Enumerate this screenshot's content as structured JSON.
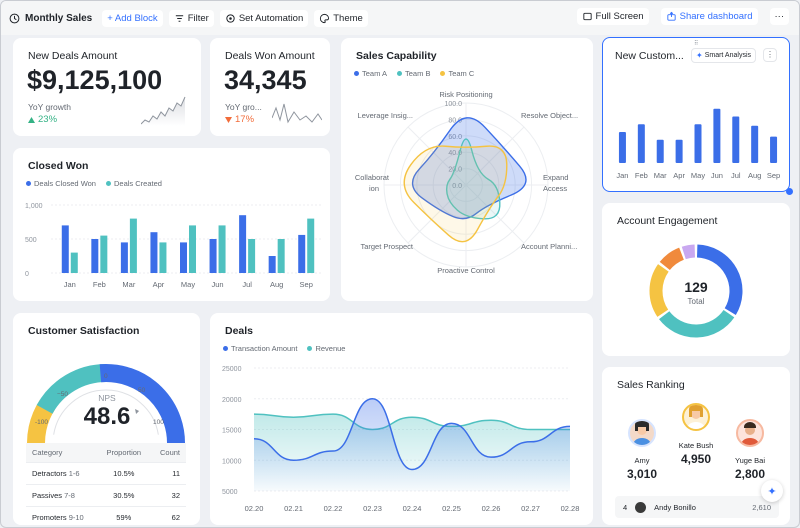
{
  "toolbar": {
    "title": "Monthly Sales",
    "add_block": "+ Add Block",
    "filter": "Filter",
    "set_automation": "Set Automation",
    "theme": "Theme",
    "full_screen": "Full Screen",
    "share_dashboard": "Share dashboard",
    "more": "···"
  },
  "new_deals": {
    "title": "New Deals Amount",
    "value": "$9,125,100",
    "yoy_label": "YoY growth",
    "yoy_value": "23%"
  },
  "deals_won": {
    "title": "Deals Won Amount",
    "value": "34,345",
    "yoy_label": "YoY gro...",
    "yoy_value": "17%"
  },
  "closed_won": {
    "title": "Closed Won",
    "legend": [
      "Deals Closed Won",
      "Deals Created"
    ]
  },
  "sales_capability": {
    "title": "Sales Capability",
    "legend": [
      "Team A",
      "Team B",
      "Team C"
    ]
  },
  "new_customers": {
    "title": "New Custom...",
    "smart_analysis": "Smart Analysis",
    "more": "⋮"
  },
  "account_engagement": {
    "title": "Account Engagement",
    "total_value": "129",
    "total_label": "Total"
  },
  "customer_satisfaction": {
    "title": "Customer Satisfaction",
    "nps_label": "NPS",
    "nps_value": "48.6",
    "gauge_ticks": [
      "-100",
      "−50",
      "0",
      "50",
      "100"
    ],
    "table": {
      "headers": [
        "Category",
        "Proportion",
        "Count"
      ],
      "rows": [
        {
          "category": "Detractors",
          "range": "1-6",
          "proportion": "10.5%",
          "count": "11"
        },
        {
          "category": "Passives",
          "range": "7-8",
          "proportion": "30.5%",
          "count": "32"
        },
        {
          "category": "Promoters",
          "range": "9-10",
          "proportion": "59%",
          "count": "62"
        }
      ]
    }
  },
  "deals": {
    "title": "Deals",
    "legend": [
      "Transaction Amount",
      "Revenue"
    ]
  },
  "sales_ranking": {
    "title": "Sales Ranking",
    "top": [
      {
        "name": "Amy",
        "value": "3,010"
      },
      {
        "name": "Kate Bush",
        "value": "4,950"
      },
      {
        "name": "Yuge Bai",
        "value": "2,800"
      }
    ],
    "row": {
      "rank": "4",
      "name": "Andy Bonillo",
      "value": "2,610"
    }
  },
  "colors": {
    "blue": "#3b6ee8",
    "teal": "#4fc1c0",
    "yellow": "#f5c342",
    "orange": "#f08a3c",
    "purple": "#c9a8f0",
    "green": "#34b285",
    "red": "#f26c3a"
  },
  "chart_data": [
    {
      "id": "closed_won",
      "type": "bar",
      "title": "Closed Won",
      "categories": [
        "Jan",
        "Feb",
        "Mar",
        "Apr",
        "May",
        "Jun",
        "Jul",
        "Aug",
        "Sep"
      ],
      "series": [
        {
          "name": "Deals Closed Won",
          "values": [
            700,
            500,
            450,
            600,
            450,
            500,
            850,
            250,
            560
          ]
        },
        {
          "name": "Deals Created",
          "values": [
            300,
            550,
            800,
            450,
            700,
            700,
            500,
            500,
            800
          ]
        }
      ],
      "yticks": [
        "0",
        "500",
        "1,000"
      ],
      "ylim": [
        0,
        1000
      ]
    },
    {
      "id": "sales_capability",
      "type": "radar",
      "title": "Sales Capability",
      "axes": [
        "Risk Positioning",
        "Resolve Object...",
        "Expand Access",
        "Account Planni...",
        "Proactive Control",
        "Target Prospect",
        "Collaboration",
        "Leverage Insig..."
      ],
      "rticks": [
        "0.0",
        "20.0",
        "40.0",
        "60.0",
        "80.0",
        "100.0"
      ],
      "series": [
        {
          "name": "Team A",
          "values": [
            95,
            65,
            85,
            35,
            45,
            45,
            75,
            55
          ]
        },
        {
          "name": "Team B",
          "values": [
            70,
            20,
            40,
            60,
            40,
            30,
            25,
            20
          ]
        },
        {
          "name": "Team C",
          "values": [
            45,
            70,
            50,
            40,
            80,
            60,
            85,
            70
          ]
        }
      ],
      "rlim": [
        0,
        100
      ]
    },
    {
      "id": "new_customers",
      "type": "bar",
      "title": "New Custom...",
      "categories": [
        "Jan",
        "Feb",
        "Mar",
        "Apr",
        "May",
        "Jun",
        "Jul",
        "Aug",
        "Sep"
      ],
      "series": [
        {
          "name": "New Customers",
          "values": [
            18,
            50,
            30,
            30,
            50,
            70,
            60,
            20,
            34
          ]
        },
        {
          "name": "New Customers b",
          "values": [
            40,
            0,
            0,
            0,
            0,
            0,
            0,
            48,
            0
          ]
        }
      ],
      "ylim": [
        0,
        80
      ]
    },
    {
      "id": "account_engagement",
      "type": "pie",
      "title": "Account Engagement",
      "slices": [
        {
          "label": "Blue",
          "value": 44
        },
        {
          "label": "Teal",
          "value": 40
        },
        {
          "label": "Yellow",
          "value": 26
        },
        {
          "label": "Orange",
          "value": 12
        },
        {
          "label": "Purple",
          "value": 7
        }
      ]
    },
    {
      "id": "nps_gauge",
      "type": "gauge",
      "title": "Customer Satisfaction",
      "value": 48.6,
      "range": [
        -100,
        100
      ],
      "bands": [
        {
          "from": -100,
          "to": -60,
          "color": "yellow"
        },
        {
          "from": -60,
          "to": 0,
          "color": "teal"
        },
        {
          "from": 0,
          "to": 100,
          "color": "blue"
        }
      ]
    },
    {
      "id": "deals",
      "type": "area",
      "title": "Deals",
      "x": [
        "02.20",
        "02.21",
        "02.22",
        "02.23",
        "02.24",
        "02.25",
        "02.26",
        "02.27",
        "02.28"
      ],
      "series": [
        {
          "name": "Transaction Amount",
          "values": [
            13500,
            10000,
            11500,
            20000,
            8500,
            16000,
            10500,
            13000,
            15500
          ]
        },
        {
          "name": "Revenue",
          "values": [
            17500,
            17000,
            17500,
            15000,
            17000,
            15500,
            16500,
            15000,
            15000
          ]
        }
      ],
      "yticks": [
        "5000",
        "10000",
        "15000",
        "20000",
        "25000"
      ],
      "ylim": [
        5000,
        25000
      ]
    }
  ]
}
